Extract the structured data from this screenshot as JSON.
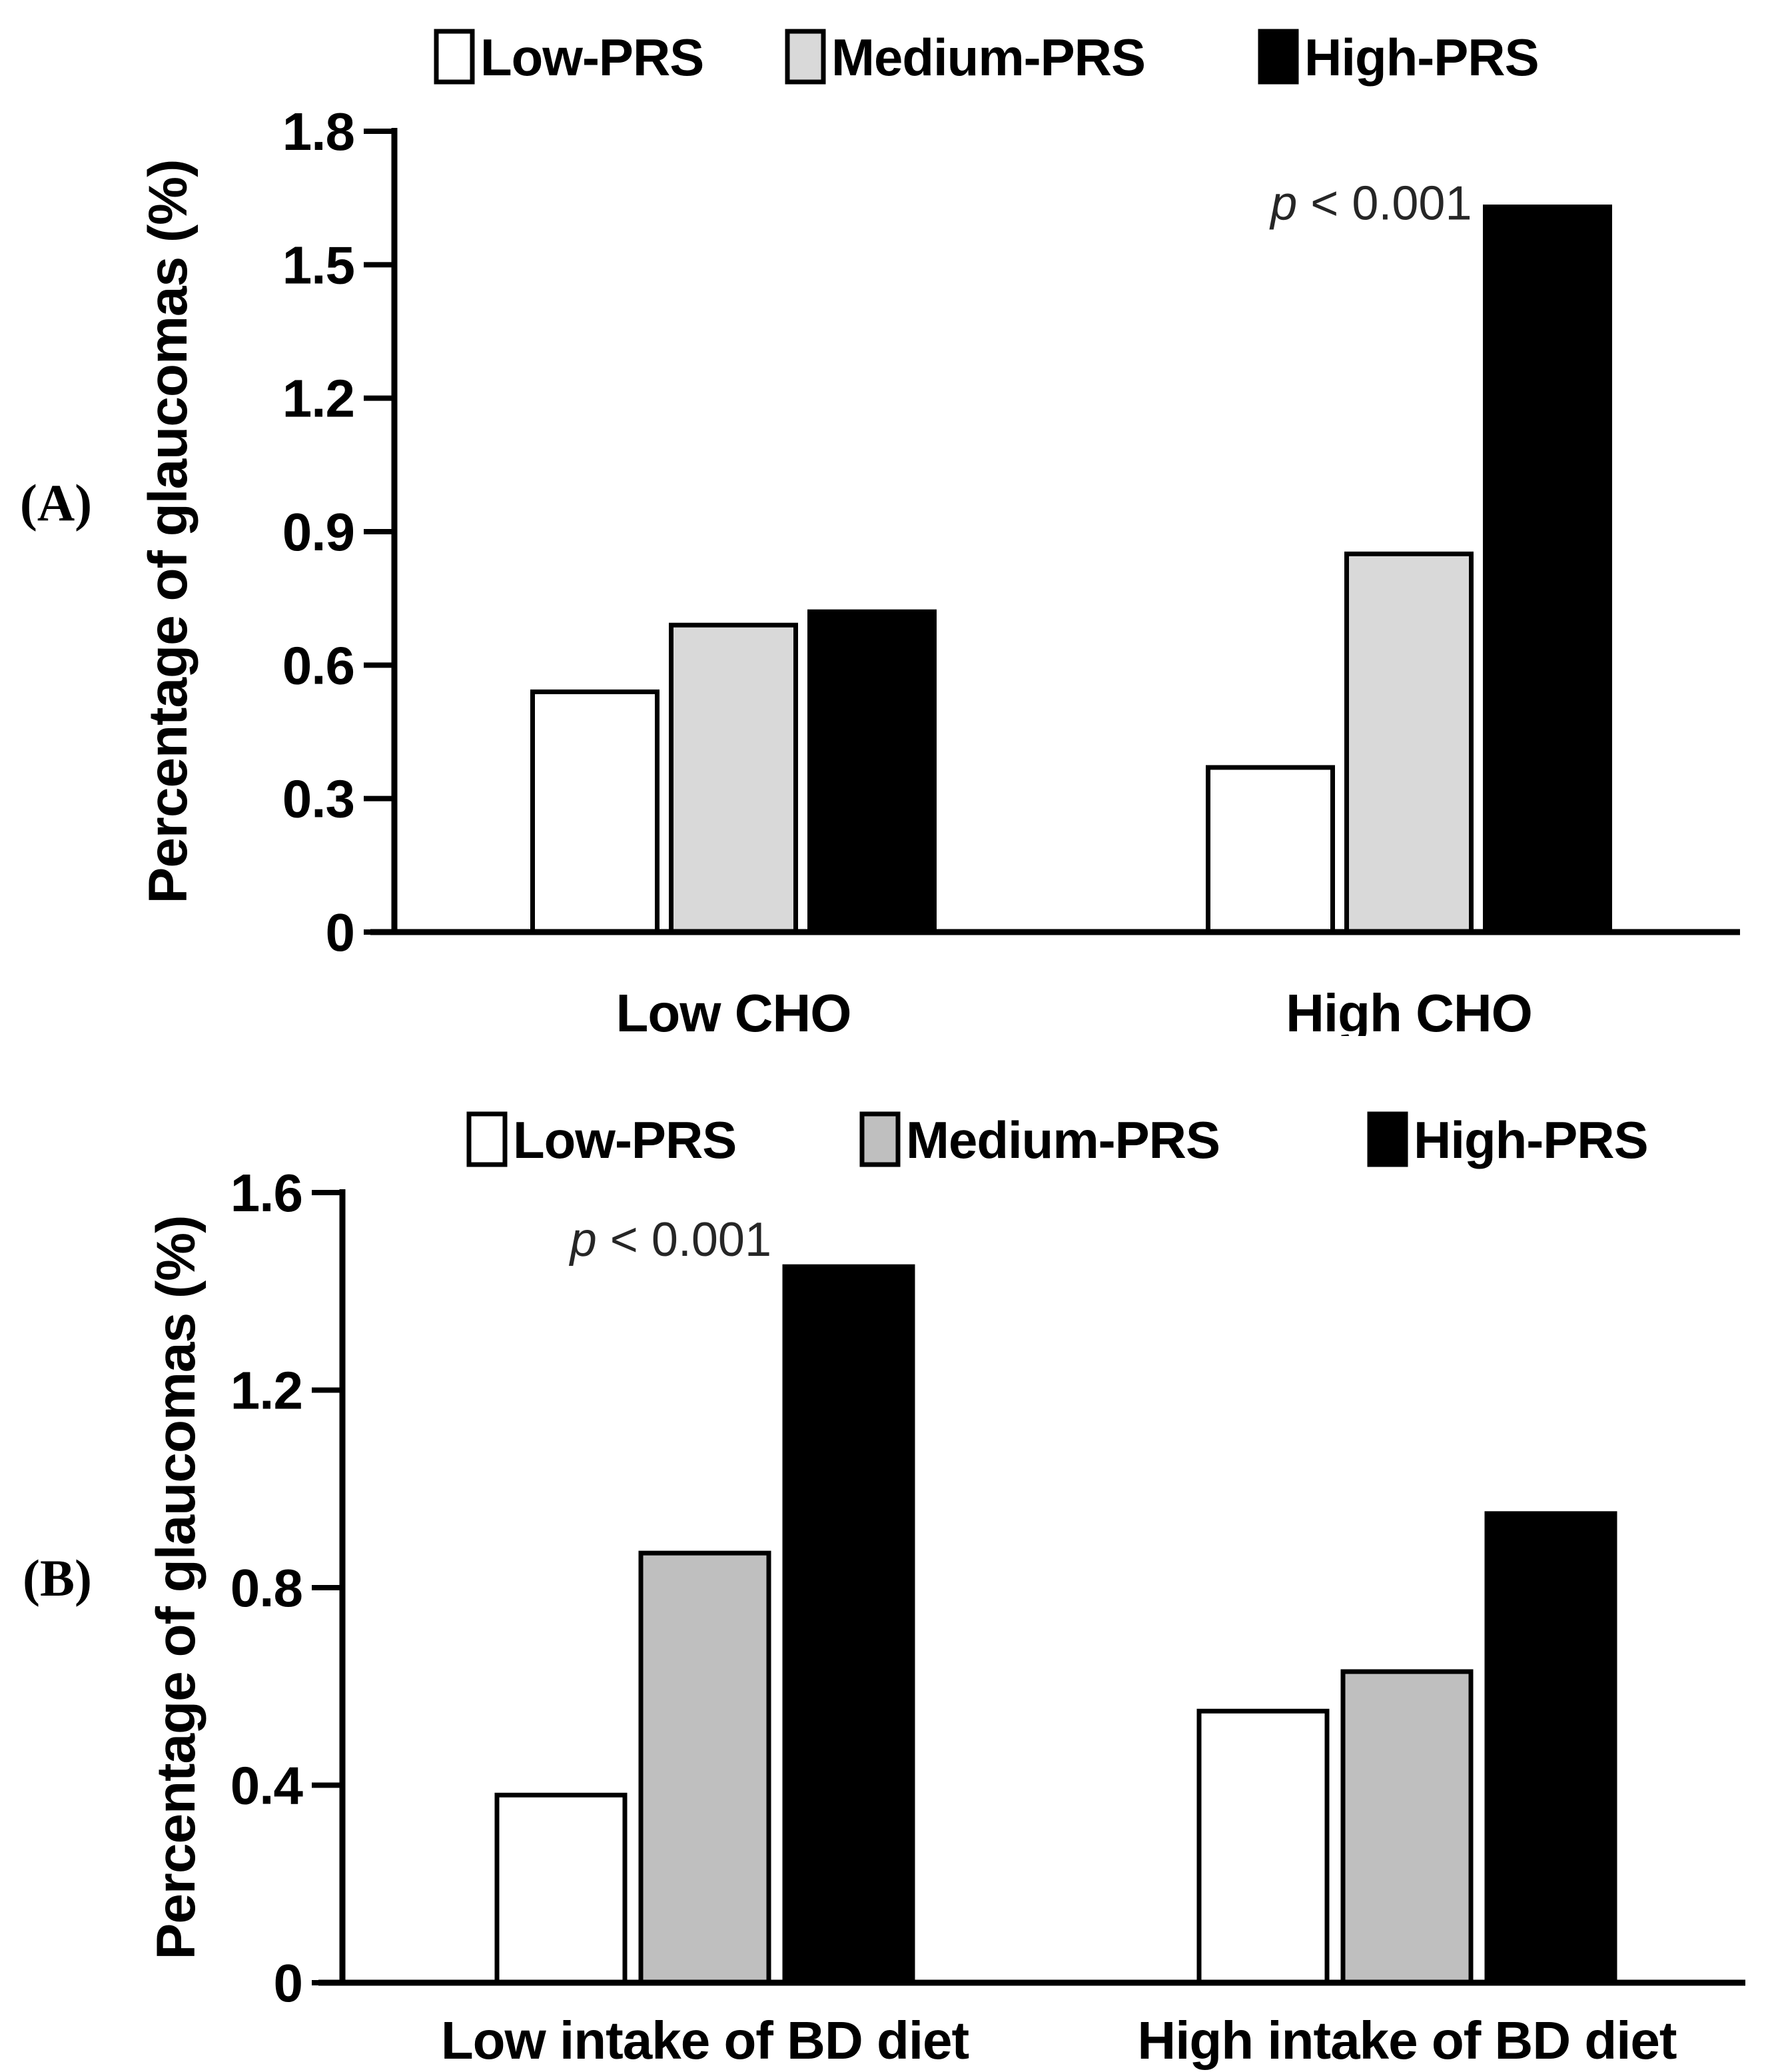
{
  "figure": {
    "background": "#ffffff",
    "axis_color": "#000000",
    "annotation_color": "#262626"
  },
  "panels": [
    {
      "panel_label": "(A)",
      "annotation": {
        "text": "p < 0.001",
        "target_category": "High CHO",
        "target_series": "High-PRS"
      }
    },
    {
      "panel_label": "(B)",
      "annotation": {
        "text": "p < 0.001",
        "target_category": "Low intake of BD diet",
        "target_series": "High-PRS"
      }
    }
  ],
  "chart_data": [
    {
      "type": "bar",
      "panel": "A",
      "title": "",
      "xlabel": "",
      "ylabel": "Percentage of glaucomas (%)",
      "categories": [
        "Low CHO",
        "High CHO"
      ],
      "series": [
        {
          "name": "Low-PRS",
          "fill": "#ffffff",
          "values": [
            0.54,
            0.37
          ]
        },
        {
          "name": "Medium-PRS",
          "fill": "#d9d9d9",
          "values": [
            0.69,
            0.85
          ]
        },
        {
          "name": "High-PRS",
          "fill": "#000000",
          "values": [
            0.72,
            1.63
          ]
        }
      ],
      "ylim": [
        0,
        1.8
      ],
      "yticks": [
        0,
        0.3,
        0.6,
        0.9,
        1.2,
        1.5,
        1.8
      ],
      "grid": false,
      "legend_position": "top"
    },
    {
      "type": "bar",
      "panel": "B",
      "title": "",
      "xlabel": "",
      "ylabel": "Percentage of glaucomas (%)",
      "categories": [
        "Low intake of BD diet",
        "High intake of BD diet"
      ],
      "series": [
        {
          "name": "Low-PRS",
          "fill": "#ffffff",
          "values": [
            0.38,
            0.55
          ]
        },
        {
          "name": "Medium-PRS",
          "fill": "#bfbfbf",
          "values": [
            0.87,
            0.63
          ]
        },
        {
          "name": "High-PRS",
          "fill": "#000000",
          "values": [
            1.45,
            0.95
          ]
        }
      ],
      "ylim": [
        0,
        1.6
      ],
      "yticks": [
        0,
        0.4,
        0.8,
        1.2,
        1.6
      ],
      "grid": false,
      "legend_position": "top"
    }
  ]
}
